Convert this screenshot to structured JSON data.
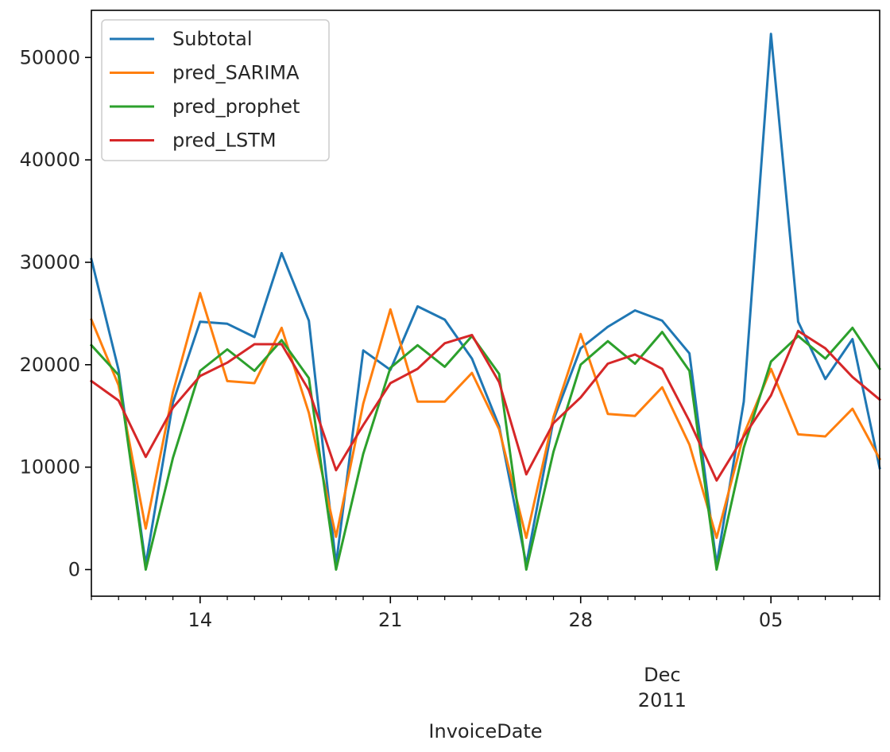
{
  "chart_data": {
    "type": "line",
    "xlabel": "InvoiceDate",
    "x": [
      "2011-11-10",
      "2011-11-11",
      "2011-11-12",
      "2011-11-13",
      "2011-11-14",
      "2011-11-15",
      "2011-11-16",
      "2011-11-17",
      "2011-11-18",
      "2011-11-19",
      "2011-11-20",
      "2011-11-21",
      "2011-11-22",
      "2011-11-23",
      "2011-11-24",
      "2011-11-25",
      "2011-11-26",
      "2011-11-27",
      "2011-11-28",
      "2011-11-29",
      "2011-11-30",
      "2011-12-01",
      "2011-12-02",
      "2011-12-03",
      "2011-12-04",
      "2011-12-05",
      "2011-12-06",
      "2011-12-07",
      "2011-12-08",
      "2011-12-09"
    ],
    "xlim": [
      "2011-11-10",
      "2011-12-09"
    ],
    "x_major_ticks": [
      {
        "date": "2011-11-14",
        "label": "14"
      },
      {
        "date": "2011-11-21",
        "label": "21"
      },
      {
        "date": "2011-11-28",
        "label": "28"
      },
      {
        "date": "2011-12-05",
        "label": "05"
      }
    ],
    "x_secondary_label": {
      "date": "2011-12-01",
      "lines": [
        "Dec",
        "2011"
      ]
    },
    "ylim": [
      -2600,
      54600
    ],
    "y_ticks": [
      0,
      10000,
      20000,
      30000,
      40000,
      50000
    ],
    "grid": false,
    "legend_position": "top-left",
    "series": [
      {
        "name": "Subtotal",
        "color": "#1f77b4",
        "values": [
          30300,
          19500,
          500,
          16300,
          24200,
          24000,
          22700,
          30900,
          24300,
          500,
          21400,
          19500,
          25700,
          24400,
          20600,
          14000,
          500,
          14600,
          21600,
          23700,
          25300,
          24300,
          21100,
          500,
          16400,
          52300,
          24200,
          18600,
          22500,
          9900
        ]
      },
      {
        "name": "pred_SARIMA",
        "color": "#ff7f0e",
        "values": [
          24400,
          18000,
          4000,
          17300,
          27000,
          18400,
          18200,
          23600,
          15300,
          3200,
          16200,
          25400,
          16400,
          16400,
          19200,
          13700,
          3100,
          14900,
          23000,
          15200,
          15000,
          17800,
          12200,
          3100,
          13200,
          19600,
          13200,
          13000,
          15700,
          10800
        ]
      },
      {
        "name": "pred_prophet",
        "color": "#2ca02c",
        "values": [
          21900,
          19000,
          0,
          10900,
          19400,
          21500,
          19400,
          22400,
          18700,
          0,
          11300,
          19700,
          21900,
          19800,
          22800,
          19100,
          0,
          11500,
          20000,
          22300,
          20100,
          23200,
          19400,
          0,
          11900,
          20300,
          22800,
          20600,
          23600,
          19600
        ]
      },
      {
        "name": "pred_LSTM",
        "color": "#d62728",
        "values": [
          18400,
          16500,
          11000,
          15800,
          18900,
          20200,
          22000,
          22000,
          17500,
          9700,
          14100,
          18200,
          19600,
          22100,
          22900,
          18300,
          9300,
          14300,
          16800,
          20100,
          21000,
          19600,
          14500,
          8700,
          13000,
          17000,
          23300,
          21600,
          18800,
          16600
        ]
      }
    ]
  }
}
